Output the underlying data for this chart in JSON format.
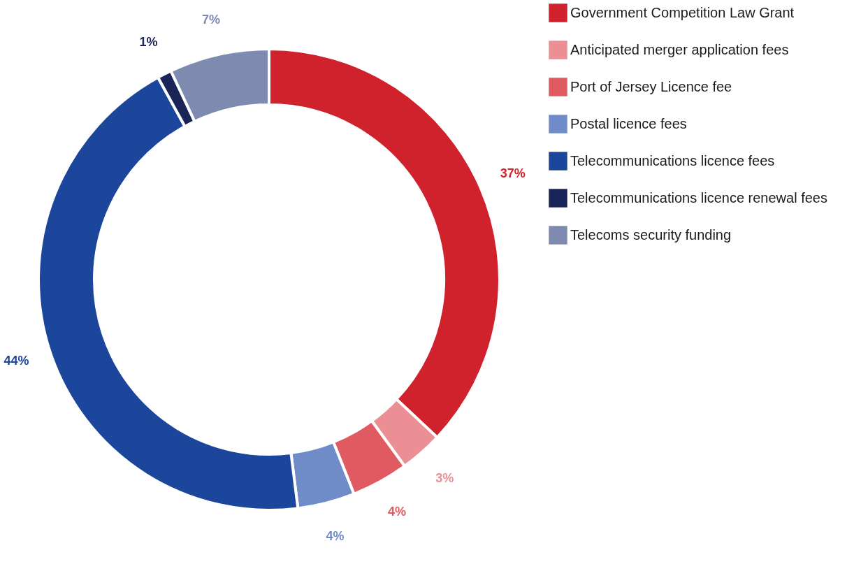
{
  "chart_data": {
    "type": "donut",
    "categories": [
      "Government Competition Law Grant",
      "Anticipated merger application fees",
      "Port of Jersey Licence fee",
      "Postal licence fees",
      "Telecommunications licence fees",
      "Telecommunications licence renewal fees",
      "Telecoms security funding"
    ],
    "values": [
      37,
      3,
      4,
      4,
      44,
      1,
      7
    ],
    "colors": [
      "#d0222d",
      "#ec8f95",
      "#e05a62",
      "#6f8cc8",
      "#1b469c",
      "#1a2456",
      "#7f8ab0"
    ],
    "value_labels": [
      "37%",
      "3%",
      "4%",
      "4%",
      "44%",
      "1%",
      "7%"
    ],
    "legend": "right"
  }
}
